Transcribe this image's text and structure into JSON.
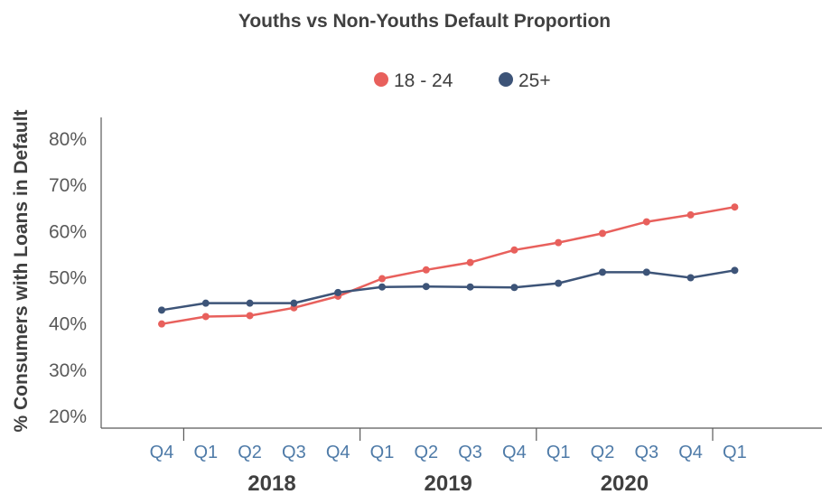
{
  "chart_data": {
    "type": "line",
    "title": "Youths vs Non-Youths Default Proportion",
    "ylabel": "% Consumers with Loans in Default",
    "xlabel": "",
    "ylim": [
      18,
      85
    ],
    "yticks": [
      "20%",
      "30%",
      "40%",
      "50%",
      "60%",
      "70%",
      "80%"
    ],
    "categories": [
      "Q4",
      "Q1",
      "Q2",
      "Q3",
      "Q4",
      "Q1",
      "Q2",
      "Q3",
      "Q4",
      "Q1",
      "Q2",
      "Q3",
      "Q4",
      "Q1"
    ],
    "year_groups": [
      {
        "label": "2018",
        "start": 1,
        "end": 4
      },
      {
        "label": "2019",
        "start": 5,
        "end": 8
      },
      {
        "label": "2020",
        "start": 9,
        "end": 12
      }
    ],
    "legend_position": "top-center",
    "grid": false,
    "series": [
      {
        "name": "18 - 24",
        "color": "#e8605c",
        "values": [
          40.0,
          41.6,
          41.8,
          43.5,
          46.0,
          49.8,
          51.7,
          53.3,
          56.0,
          57.6,
          59.6,
          62.1,
          63.6,
          65.3
        ]
      },
      {
        "name": "25+",
        "color": "#3d5478",
        "values": [
          43.0,
          44.5,
          44.5,
          44.5,
          46.8,
          48.0,
          48.1,
          48.0,
          47.9,
          48.8,
          51.2,
          51.2,
          50.0,
          51.6
        ]
      }
    ]
  }
}
